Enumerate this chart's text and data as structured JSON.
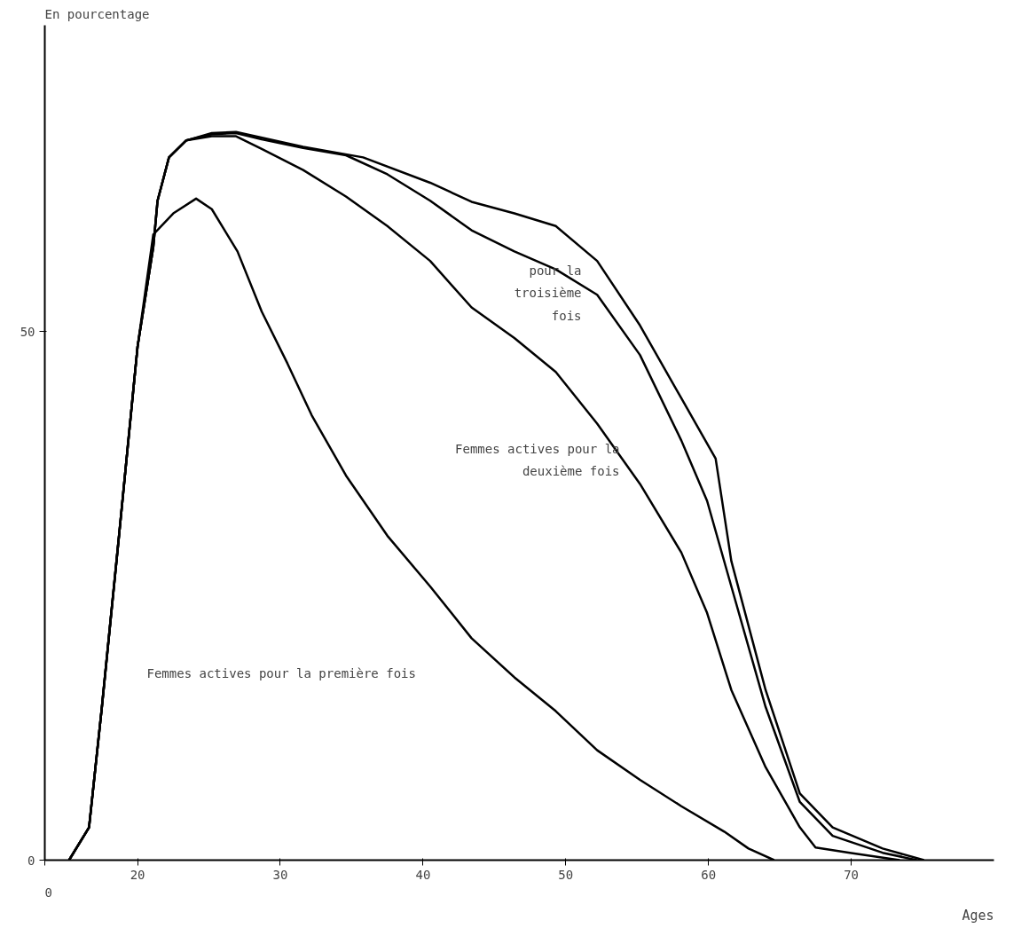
{
  "chart_data": {
    "type": "line",
    "xlabel": "Ages",
    "ylabel": "En pourcentage",
    "xlim": [
      13.5,
      80
    ],
    "ylim": [
      0,
      79
    ],
    "xticks": [
      {
        "value": 13.5,
        "label": null
      },
      20,
      30,
      40,
      50,
      60,
      70
    ],
    "yticks": [
      0,
      50
    ],
    "grid": false,
    "marker": "none",
    "line_style": "solid",
    "series": [
      {
        "color": "#000000",
        "x": [
          15.2,
          16.6,
          17.5,
          18.7,
          20,
          21.1,
          22.5,
          24.1,
          25.2,
          27,
          28.7,
          30.5,
          32.2,
          34.6,
          37.5,
          40.5,
          43.4,
          46.4,
          49.3,
          52.2,
          55.2,
          58.1,
          61.1,
          62.8,
          64.6
        ],
        "values": [
          0,
          3.1,
          14.5,
          30.7,
          48.6,
          59.2,
          61.2,
          62.6,
          61.6,
          57.6,
          51.9,
          47,
          42.1,
          36.4,
          30.7,
          25.9,
          21,
          17.3,
          14.1,
          10.4,
          7.6,
          5.1,
          2.7,
          1.1,
          0
        ]
      },
      {
        "color": "#000000",
        "x": [
          15.2,
          16.6,
          17.5,
          18.7,
          20,
          21.1,
          21.4,
          22.2,
          23.4,
          25.2,
          26.9,
          28.7,
          31.6,
          34.6,
          37.5,
          40.5,
          43.4,
          46.4,
          49.3,
          52.2,
          55.2,
          58.1,
          59.9,
          61.6,
          64,
          66.4,
          67.5,
          69.9,
          73.4
        ],
        "values": [
          0,
          3.1,
          14.5,
          30.7,
          48.6,
          58,
          62.4,
          66.5,
          68.1,
          68.5,
          68.5,
          67.3,
          65.3,
          62.8,
          60,
          56.7,
          52.3,
          49.4,
          46.2,
          41.3,
          35.6,
          29.1,
          23.4,
          16.1,
          8.8,
          3.1,
          1.2,
          0.7,
          0
        ]
      },
      {
        "color": "#000000",
        "x": [
          15.2,
          16.6,
          17.5,
          18.7,
          20,
          21.1,
          21.4,
          22.2,
          23.4,
          25.2,
          26.9,
          28.7,
          31.6,
          34.6,
          37.5,
          40.5,
          43.4,
          46.4,
          49.3,
          52.2,
          55.2,
          58.1,
          59.9,
          61.6,
          64,
          66.4,
          68.7,
          72.2,
          74.6
        ],
        "values": [
          0,
          3.1,
          14.5,
          30.7,
          48.6,
          58,
          62.4,
          66.5,
          68.1,
          68.7,
          68.8,
          68.2,
          67.4,
          66.7,
          64.9,
          62.4,
          59.6,
          57.6,
          55.9,
          53.5,
          47.8,
          39.7,
          34,
          25.9,
          14.5,
          5.5,
          2.3,
          0.7,
          0
        ]
      },
      {
        "color": "#000000",
        "x": [
          15.2,
          16.6,
          17.5,
          18.7,
          20,
          21.1,
          21.4,
          22.2,
          23.4,
          25.2,
          26.9,
          31.6,
          35.8,
          40.5,
          43.4,
          46.4,
          49.3,
          52.2,
          55.2,
          58.1,
          60.5,
          61.6,
          64,
          66.4,
          68.7,
          72.2,
          75.1
        ],
        "values": [
          0,
          3.1,
          14.5,
          30.7,
          48.6,
          58,
          62.4,
          66.5,
          68.1,
          68.8,
          68.9,
          67.5,
          66.5,
          64.1,
          62.3,
          61.2,
          60,
          56.7,
          50.6,
          43.7,
          38,
          28.3,
          16.1,
          6.3,
          3.1,
          1.1,
          0
        ]
      }
    ],
    "annotations": [
      "Femmes actives pour la première fois",
      "Femmes actives pour la\ndeuxième fois",
      "pour la\ntroisième\nfois",
      "0"
    ]
  }
}
